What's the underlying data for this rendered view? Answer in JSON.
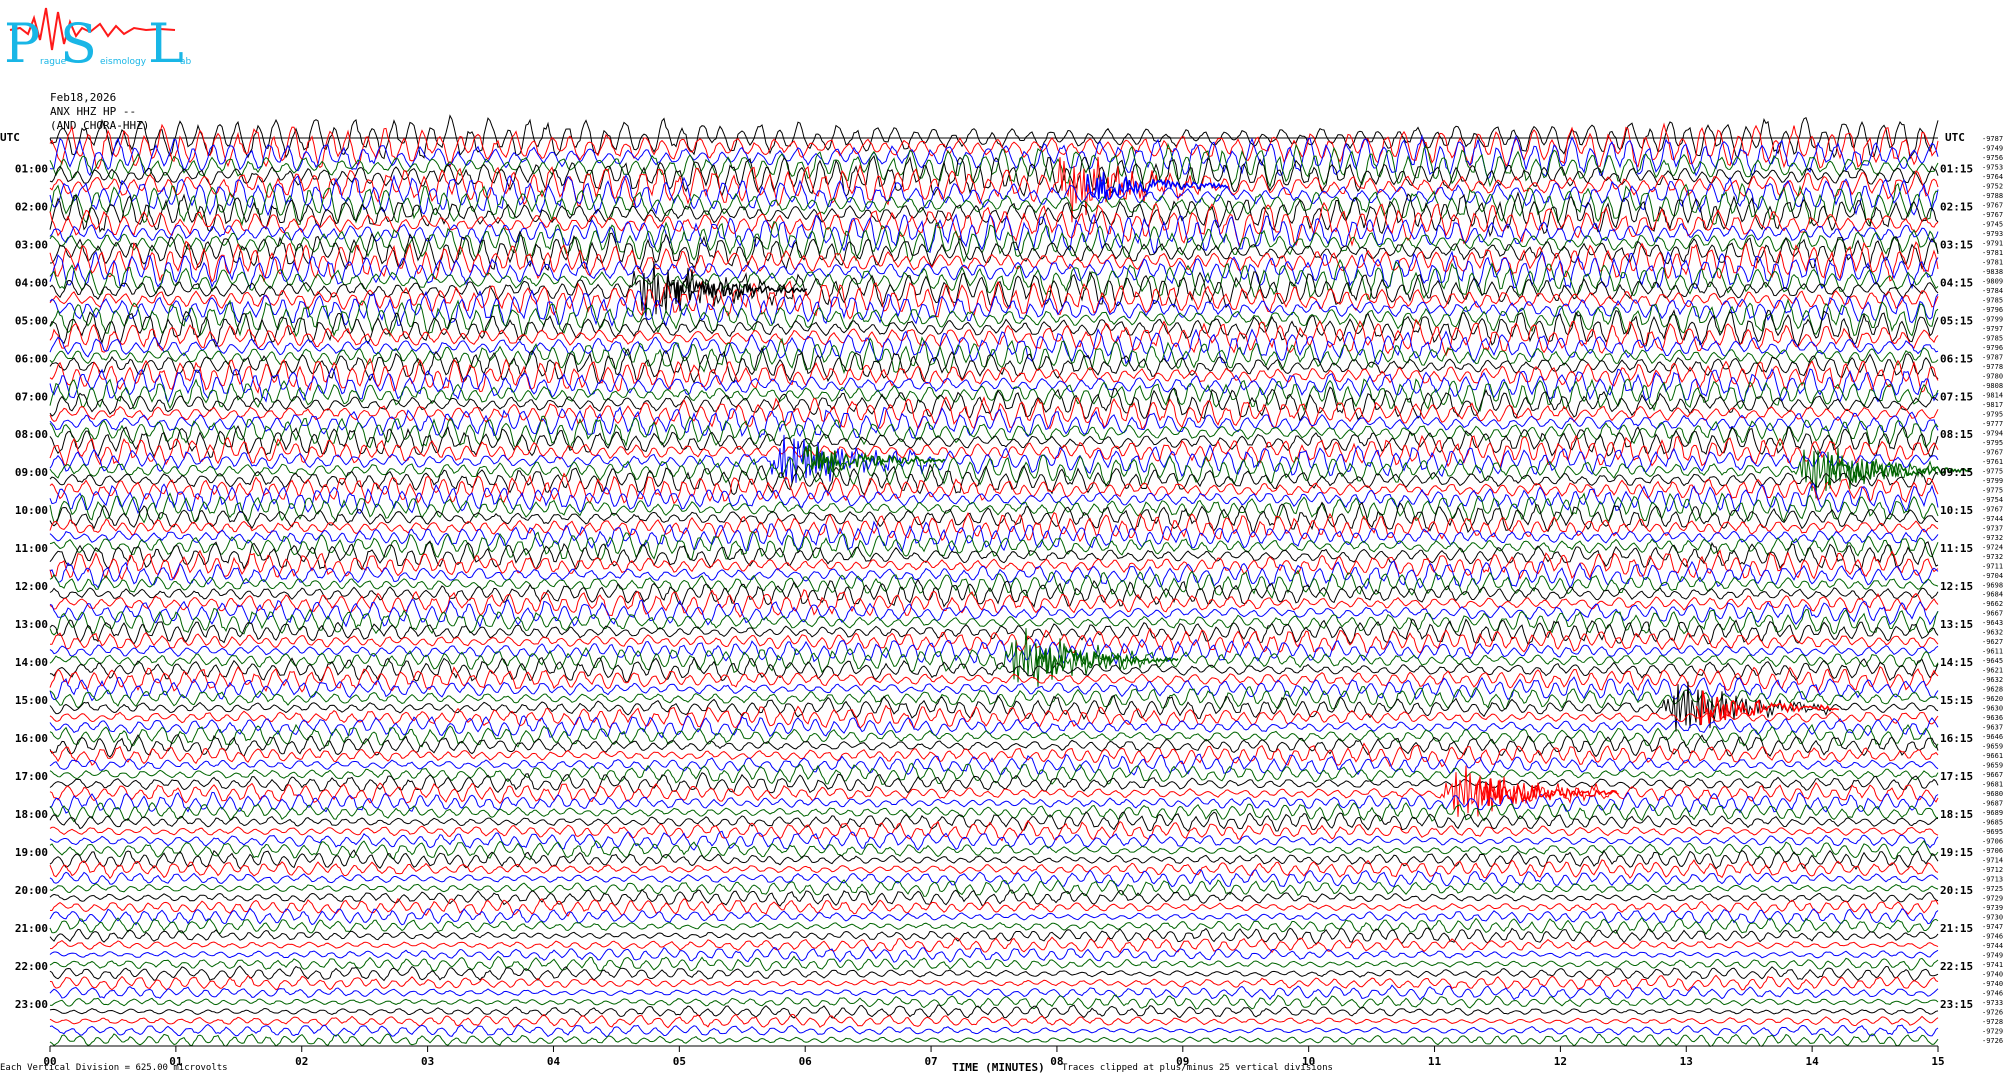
{
  "logo": {
    "letters": [
      "P",
      "S",
      "L"
    ],
    "subtitle_parts": [
      "rague",
      "eismology",
      "ab"
    ]
  },
  "header": {
    "date": "Feb18,2026",
    "station": "ANX HHZ HP --",
    "location": "(AND CHORA-HHZ)"
  },
  "axes": {
    "left_unit": "UTC",
    "right_unit": "UTC",
    "left_hours": [
      "01:00",
      "02:00",
      "03:00",
      "04:00",
      "05:00",
      "06:00",
      "07:00",
      "08:00",
      "09:00",
      "10:00",
      "11:00",
      "12:00",
      "13:00",
      "14:00",
      "15:00",
      "16:00",
      "17:00",
      "18:00",
      "19:00",
      "20:00",
      "21:00",
      "22:00",
      "23:00"
    ],
    "right_hours": [
      "01:15",
      "02:15",
      "03:15",
      "04:15",
      "05:15",
      "06:15",
      "07:15",
      "08:15",
      "09:15",
      "10:15",
      "11:15",
      "12:15",
      "13:15",
      "14:15",
      "15:15",
      "16:15",
      "17:15",
      "18:15",
      "19:15",
      "20:15",
      "21:15",
      "22:15",
      "23:15"
    ],
    "x_ticks": [
      "00",
      "01",
      "02",
      "03",
      "04",
      "05",
      "06",
      "07",
      "08",
      "09",
      "10",
      "11",
      "12",
      "13",
      "14",
      "15"
    ],
    "x_label": "TIME (MINUTES)"
  },
  "chart_data": {
    "type": "line",
    "title": "",
    "xlabel": "TIME (MINUTES)",
    "ylabel": "UTC",
    "x_range": [
      0,
      15
    ],
    "rows_per_hour": 4,
    "trace_colors": [
      "#000000",
      "#ff0000",
      "#0000ff",
      "#006400"
    ],
    "right_labels": [
      "-9787",
      "-9749",
      "-9756",
      "-9753",
      "-9764",
      "-9752",
      "-9788",
      "-9767",
      "-9767",
      "-9745",
      "-9793",
      "-9791",
      "-9781",
      "-9781",
      "-9838",
      "-9809",
      "-9784",
      "-9785",
      "-9796",
      "-9799",
      "-9797",
      "-9785",
      "-9796",
      "-9787",
      "-9778",
      "-9780",
      "-9808",
      "-9814",
      "-9817",
      "-9795",
      "-9777",
      "-9794",
      "-9795",
      "-9767",
      "-9761",
      "-9775",
      "-9799",
      "-9775",
      "-9754",
      "-9767",
      "-9744",
      "-9737",
      "-9732",
      "-9724",
      "-9732",
      "-9711",
      "-9704",
      "-9698",
      "-9684",
      "-9662",
      "-9667",
      "-9643",
      "-9632",
      "-9627",
      "-9611",
      "-9645",
      "-9621",
      "-9632",
      "-9628",
      "-9620",
      "-9630",
      "-9636",
      "-9637",
      "-9646",
      "-9659",
      "-9661",
      "-9659",
      "-9667",
      "-9681",
      "-9680",
      "-9687",
      "-9689",
      "-9685",
      "-9695",
      "-9706",
      "-9706",
      "-9714",
      "-9712",
      "-9713",
      "-9725",
      "-9729",
      "-9739",
      "-9730",
      "-9747",
      "-9746",
      "-9744",
      "-9749",
      "-9741",
      "-9740",
      "-9740",
      "-9746",
      "-9733",
      "-9726",
      "-9728",
      "-9729",
      "-9726"
    ],
    "events": [
      {
        "hour_row": 3.9,
        "minute": 4.75,
        "color": "#000000"
      },
      {
        "hour_row": 1.3,
        "minute": 8.1,
        "color": "#0000ff"
      },
      {
        "hour_row": 8.6,
        "minute": 5.85,
        "color": "#006400"
      },
      {
        "hour_row": 8.7,
        "minute": 14.0,
        "color": "#006400"
      },
      {
        "hour_row": 13.7,
        "minute": 7.7,
        "color": "#006400"
      },
      {
        "hour_row": 15.1,
        "minute": 12.95,
        "color": "#ff0000"
      },
      {
        "hour_row": 17.2,
        "minute": 11.2,
        "color": "#ff0000"
      }
    ]
  },
  "footer": {
    "vertical_division": "Each Vertical Division =  625.00 microvolts",
    "clip_note": "Traces clipped at plus/minus 25 vertical divisions"
  }
}
